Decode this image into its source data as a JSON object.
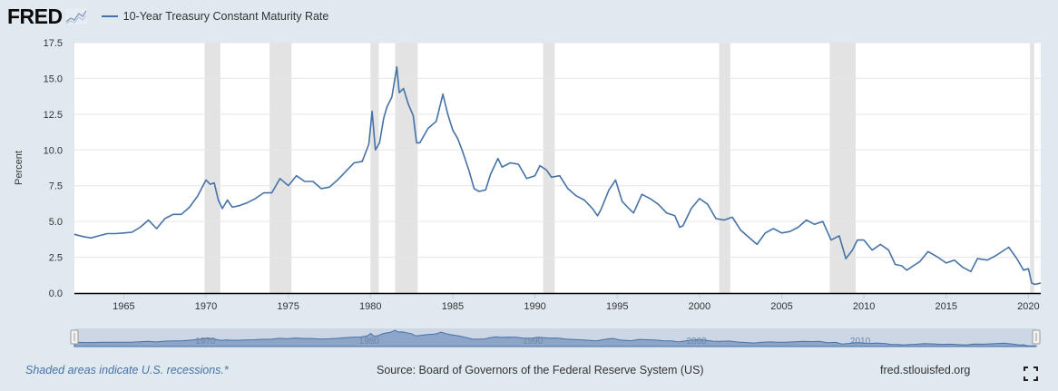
{
  "header": {
    "logo_text": "FRED",
    "legend_label": "10-Year Treasury Constant Maturity Rate"
  },
  "footer": {
    "recession_note": "Shaded areas indicate U.S. recessions.*",
    "source": "Source: Board of Governors of the Federal Reserve System (US)",
    "url": "fred.stlouisfed.org"
  },
  "colors": {
    "series": "#4572a7",
    "recession": "#e3e3e3",
    "background": "#e1e9f0",
    "plot": "#ffffff"
  },
  "icons": [
    "fred-chart-icon",
    "fullscreen-icon"
  ],
  "navigator_labels": [
    "1970",
    "1980",
    "1990",
    "2000",
    "2010"
  ],
  "chart_data": {
    "type": "line",
    "title": "10-Year Treasury Constant Maturity Rate",
    "ylabel": "Percent",
    "xlabel": "",
    "xlim": [
      1962.0,
      2020.75
    ],
    "ylim": [
      0,
      17.5
    ],
    "yticks": [
      0.0,
      2.5,
      5.0,
      7.5,
      10.0,
      12.5,
      15.0,
      17.5
    ],
    "ytick_labels": [
      "0.0",
      "2.5",
      "5.0",
      "7.5",
      "10.0",
      "12.5",
      "15.0",
      "17.5"
    ],
    "xticks": [
      1965,
      1970,
      1975,
      1980,
      1985,
      1990,
      1995,
      2000,
      2005,
      2010,
      2015,
      2020
    ],
    "grid": "horizontal",
    "recessions": [
      [
        1969.92,
        1970.87
      ],
      [
        1973.87,
        1975.2
      ],
      [
        1980.0,
        1980.5
      ],
      [
        1981.5,
        1982.87
      ],
      [
        1990.5,
        1991.2
      ],
      [
        2001.2,
        2001.87
      ],
      [
        2007.92,
        2009.5
      ],
      [
        2020.1,
        2020.35
      ]
    ],
    "series": [
      {
        "x": [
          1962.0,
          1962.5,
          1963.0,
          1963.5,
          1964.0,
          1964.5,
          1965.0,
          1965.5,
          1966.0,
          1966.5,
          1967.0,
          1967.5,
          1968.0,
          1968.5,
          1969.0,
          1969.5,
          1970.0,
          1970.25,
          1970.5,
          1970.75,
          1971.0,
          1971.3,
          1971.6,
          1972.0,
          1972.5,
          1973.0,
          1973.5,
          1974.0,
          1974.5,
          1975.0,
          1975.5,
          1976.0,
          1976.5,
          1977.0,
          1977.5,
          1978.0,
          1978.5,
          1979.0,
          1979.5,
          1979.9,
          1980.1,
          1980.3,
          1980.55,
          1980.8,
          1981.0,
          1981.3,
          1981.6,
          1981.75,
          1982.0,
          1982.3,
          1982.6,
          1982.8,
          1983.0,
          1983.5,
          1984.0,
          1984.4,
          1984.7,
          1985.0,
          1985.3,
          1985.6,
          1986.0,
          1986.3,
          1986.6,
          1987.0,
          1987.3,
          1987.75,
          1988.0,
          1988.5,
          1989.0,
          1989.5,
          1990.0,
          1990.3,
          1990.7,
          1991.0,
          1991.5,
          1992.0,
          1992.5,
          1993.0,
          1993.5,
          1993.8,
          1994.0,
          1994.5,
          1994.9,
          1995.3,
          1995.8,
          1996.0,
          1996.5,
          1997.0,
          1997.5,
          1998.0,
          1998.5,
          1998.8,
          1999.0,
          1999.5,
          2000.0,
          2000.5,
          2001.0,
          2001.5,
          2002.0,
          2002.5,
          2003.0,
          2003.5,
          2004.0,
          2004.5,
          2005.0,
          2005.5,
          2006.0,
          2006.5,
          2007.0,
          2007.5,
          2008.0,
          2008.5,
          2008.9,
          2009.3,
          2009.6,
          2010.0,
          2010.5,
          2011.0,
          2011.5,
          2011.9,
          2012.3,
          2012.6,
          2013.0,
          2013.4,
          2013.9,
          2014.5,
          2015.0,
          2015.5,
          2016.0,
          2016.5,
          2016.9,
          2017.5,
          2018.0,
          2018.8,
          2019.3,
          2019.7,
          2020.0,
          2020.2,
          2020.4,
          2020.75
        ],
        "values": [
          4.1,
          3.95,
          3.85,
          4.0,
          4.15,
          4.15,
          4.2,
          4.25,
          4.6,
          5.1,
          4.5,
          5.2,
          5.5,
          5.5,
          6.0,
          6.8,
          7.9,
          7.6,
          7.7,
          6.5,
          5.9,
          6.5,
          6.0,
          6.1,
          6.3,
          6.6,
          7.0,
          7.0,
          8.0,
          7.5,
          8.2,
          7.8,
          7.8,
          7.3,
          7.4,
          7.9,
          8.5,
          9.1,
          9.2,
          10.4,
          12.7,
          10.0,
          10.5,
          12.2,
          13.0,
          13.7,
          15.8,
          14.0,
          14.3,
          13.2,
          12.4,
          10.5,
          10.5,
          11.5,
          12.0,
          13.9,
          12.5,
          11.4,
          10.8,
          9.9,
          8.5,
          7.3,
          7.1,
          7.2,
          8.3,
          9.4,
          8.8,
          9.1,
          9.0,
          8.0,
          8.2,
          8.9,
          8.6,
          8.1,
          8.2,
          7.3,
          6.8,
          6.5,
          5.9,
          5.4,
          5.8,
          7.2,
          7.9,
          6.4,
          5.8,
          5.6,
          6.9,
          6.6,
          6.2,
          5.6,
          5.4,
          4.6,
          4.7,
          5.9,
          6.6,
          6.2,
          5.2,
          5.1,
          5.3,
          4.4,
          3.9,
          3.4,
          4.2,
          4.5,
          4.2,
          4.3,
          4.6,
          5.1,
          4.8,
          5.0,
          3.7,
          4.0,
          2.4,
          3.0,
          3.7,
          3.7,
          3.0,
          3.4,
          3.0,
          2.0,
          1.9,
          1.6,
          1.9,
          2.2,
          2.9,
          2.5,
          2.1,
          2.3,
          1.8,
          1.5,
          2.4,
          2.3,
          2.6,
          3.2,
          2.4,
          1.6,
          1.7,
          0.7,
          0.6,
          0.7
        ]
      }
    ]
  }
}
